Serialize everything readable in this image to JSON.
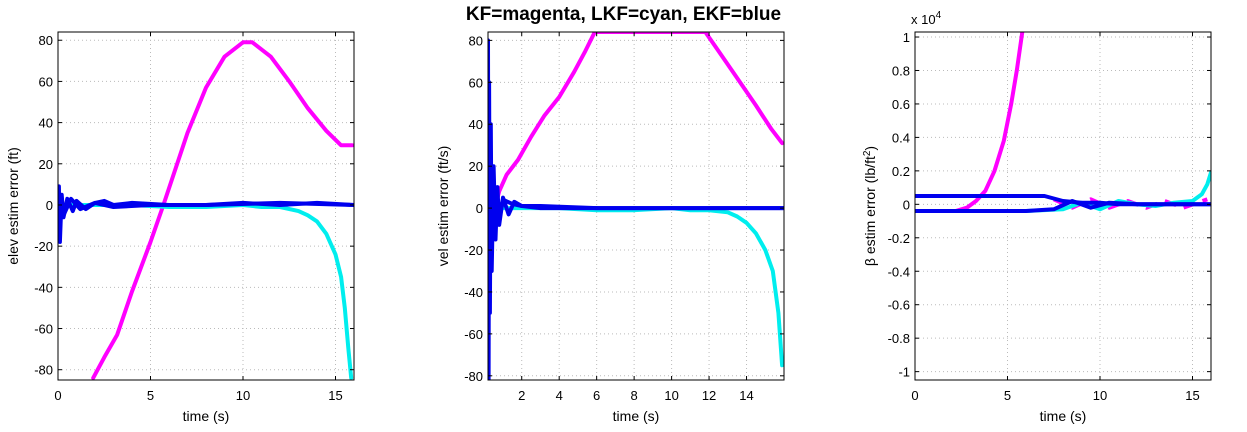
{
  "figure": {
    "title": "KF=magenta, LKF=cyan, EKF=blue"
  },
  "colors": {
    "KF": "#ff00ff",
    "LKF": "#00eeee",
    "EKF": "#0000ee",
    "grid": "#bbbbbb",
    "axis": "#000000"
  },
  "chart_data": [
    {
      "type": "line",
      "xlabel": "time (s)",
      "ylabel": "elev estim error (ft)",
      "xlim": [
        0,
        16
      ],
      "ylim": [
        -85,
        84
      ],
      "xticks": [
        0,
        5,
        10,
        15
      ],
      "yticks": [
        -80,
        -60,
        -40,
        -20,
        0,
        20,
        40,
        60,
        80
      ],
      "grid": true,
      "series": [
        {
          "key": "KF",
          "x": [
            1.9,
            2.5,
            3.2,
            4,
            5,
            5.7,
            7,
            8,
            9,
            10,
            10.5,
            11.5,
            12.5,
            13.5,
            14.5,
            15.3,
            15.9
          ],
          "y": [
            -84,
            -74,
            -63,
            -42,
            -18,
            0,
            35,
            57,
            72,
            79,
            79,
            72,
            60,
            47,
            36,
            29,
            29
          ]
        },
        {
          "key": "LKF",
          "x": [
            0,
            2,
            4,
            6,
            8,
            10,
            11,
            12,
            13,
            13.5,
            14,
            14.5,
            15,
            15.3,
            15.5,
            15.7,
            15.85
          ],
          "y": [
            0,
            0,
            0,
            -1,
            -1,
            0,
            -1,
            -1,
            -3,
            -5,
            -8,
            -14,
            -24,
            -35,
            -50,
            -70,
            -84
          ]
        },
        {
          "key": "EKF",
          "x": [
            0,
            0.05,
            0.1,
            0.2,
            0.3,
            0.5,
            0.8,
            1,
            1.5,
            2,
            2.5,
            3,
            4,
            6,
            8,
            10,
            12,
            14,
            16
          ],
          "y": [
            0,
            9,
            -18,
            5,
            -6,
            3,
            -3,
            2,
            -2,
            1,
            2,
            0,
            1,
            0,
            0,
            1,
            0,
            1,
            0
          ]
        },
        {
          "key": "EKF",
          "x": [
            0,
            0.3,
            0.7,
            1.2,
            2,
            3,
            5,
            8,
            12,
            16
          ],
          "y": [
            2,
            -5,
            3,
            -2,
            1,
            -1,
            0,
            0,
            1,
            0
          ]
        }
      ]
    },
    {
      "type": "line",
      "xlabel": "time (s)",
      "ylabel": "vel estim error (ft/s)",
      "xlim": [
        0.2,
        16
      ],
      "ylim": [
        -82,
        84
      ],
      "xticks": [
        2,
        4,
        6,
        8,
        10,
        12,
        14
      ],
      "yticks": [
        -80,
        -60,
        -40,
        -20,
        0,
        20,
        40,
        60,
        80
      ],
      "grid": true,
      "series": [
        {
          "key": "KF",
          "x": [
            0.3,
            0.5,
            0.8,
            1.2,
            1.8,
            2.5,
            3.2,
            4,
            4.8,
            5.4,
            5.9,
            11.8,
            12.5,
            13.5,
            14.5,
            15.3,
            15.9
          ],
          "y": [
            -20,
            -2,
            8,
            16,
            23,
            34,
            44,
            53,
            65,
            75,
            84,
            84,
            75,
            62,
            49,
            38,
            31
          ]
        },
        {
          "key": "LKF",
          "x": [
            0.2,
            2,
            4,
            6,
            8,
            10,
            11,
            12,
            13,
            13.5,
            14,
            14.5,
            15,
            15.4,
            15.7,
            15.9
          ],
          "y": [
            0,
            0,
            0,
            -1,
            -1,
            0,
            -1,
            -1,
            -2,
            -4,
            -7,
            -12,
            -20,
            -30,
            -50,
            -75
          ]
        },
        {
          "key": "EKF",
          "x": [
            0.2,
            0.23,
            0.26,
            0.3,
            0.35,
            0.4,
            0.5,
            0.6,
            0.7,
            0.8,
            1,
            1.3,
            1.6,
            2,
            3,
            5,
            8,
            12,
            16
          ],
          "y": [
            80,
            -82,
            60,
            -50,
            40,
            -30,
            20,
            -15,
            10,
            -8,
            5,
            -3,
            3,
            1,
            0,
            0,
            0,
            0,
            0
          ]
        },
        {
          "key": "EKF",
          "x": [
            0.2,
            0.4,
            0.7,
            1,
            1.5,
            2,
            3,
            6,
            10,
            16
          ],
          "y": [
            -10,
            8,
            -5,
            4,
            2,
            1,
            1,
            0,
            0,
            0
          ]
        }
      ]
    },
    {
      "type": "line",
      "ylabel": "β estim error (lb/ft",
      "ylabel_sup": "2",
      "ylabel_close": ")",
      "xlabel": "time (s)",
      "scale_label": "x 10",
      "scale_exp": "4",
      "xlim": [
        0,
        16
      ],
      "ylim": [
        -1.05,
        1.03
      ],
      "xticks": [
        0,
        5,
        10,
        15
      ],
      "yticks": [
        -1,
        -0.8,
        -0.6,
        -0.4,
        -0.2,
        0,
        0.2,
        0.4,
        0.6,
        0.8,
        1
      ],
      "ytick_labels": [
        "-1",
        "-0.8",
        "-0.6",
        "-0.4",
        "-0.2",
        "0",
        "0.2",
        "0.4",
        "0.6",
        "0.8",
        "1"
      ],
      "grid": true,
      "series": [
        {
          "key": "KF",
          "x": [
            2.2,
            2.8,
            3.3,
            3.8,
            4.3,
            4.8,
            5.2,
            5.5,
            5.8
          ],
          "y": [
            -0.04,
            -0.02,
            0.02,
            0.08,
            0.2,
            0.38,
            0.6,
            0.8,
            1.03
          ]
        },
        {
          "key": "KF",
          "dashed": true,
          "x": [
            7.5,
            8.5,
            9.5,
            10.5,
            11.5,
            12.5,
            13.5,
            14.5,
            15.8
          ],
          "y": [
            0.03,
            -0.02,
            0.03,
            -0.02,
            0.02,
            -0.02,
            0.02,
            -0.02,
            0.03
          ]
        },
        {
          "key": "LKF",
          "x": [
            0,
            6,
            8,
            9,
            10,
            11,
            12,
            13,
            14,
            15,
            15.5,
            15.8,
            16
          ],
          "y": [
            -0.04,
            -0.04,
            -0.03,
            0.01,
            -0.03,
            0.02,
            0,
            -0.01,
            0.01,
            0.02,
            0.06,
            0.12,
            0.19
          ]
        },
        {
          "key": "EKF",
          "x": [
            0,
            7,
            8,
            9,
            10,
            11,
            12,
            14,
            16
          ],
          "y": [
            0.05,
            0.05,
            0.02,
            0.01,
            0.01,
            0.0,
            0.0,
            0.0,
            0.0
          ]
        },
        {
          "key": "EKF",
          "x": [
            0,
            6,
            7.5,
            8.5,
            9.5,
            10.5,
            12,
            14,
            16
          ],
          "y": [
            -0.04,
            -0.04,
            -0.03,
            0.02,
            -0.02,
            0.01,
            0.0,
            0.0,
            0.0
          ]
        }
      ]
    }
  ]
}
